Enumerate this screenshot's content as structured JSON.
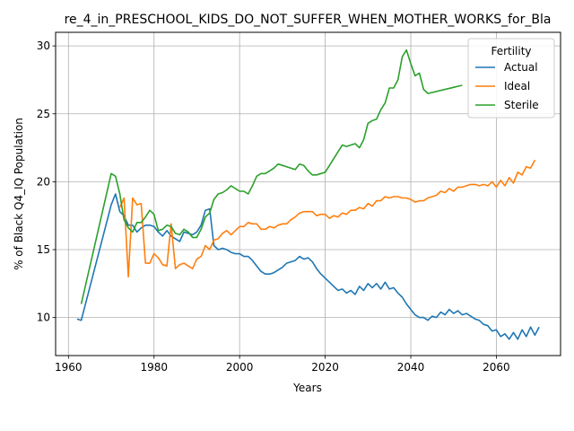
{
  "chart_data": {
    "type": "line",
    "title": "re_4_in_PRESCHOOL_KIDS_DO_NOT_SUFFER_WHEN_MOTHER_WORKS_for_Bla",
    "xlabel": "Years",
    "ylabel": "% of Black Q4_IQ Population",
    "xlim": [
      1957,
      2075
    ],
    "ylim": [
      7.2,
      31.0
    ],
    "x_ticks": [
      1960,
      1980,
      2000,
      2020,
      2040,
      2060
    ],
    "y_ticks": [
      10,
      15,
      20,
      25,
      30
    ],
    "grid": true,
    "legend": {
      "title": "Fertility",
      "position": "top-right"
    },
    "series": [
      {
        "name": "Actual",
        "color": "#1f77b4",
        "points": [
          [
            1962,
            9.9
          ],
          [
            1963,
            9.8
          ],
          [
            1970,
            18.3
          ],
          [
            1971,
            19.1
          ],
          [
            1972,
            17.8
          ],
          [
            1973,
            17.5
          ],
          [
            1974,
            16.8
          ],
          [
            1975,
            16.8
          ],
          [
            1976,
            16.3
          ],
          [
            1977,
            16.6
          ],
          [
            1978,
            16.8
          ],
          [
            1979,
            16.8
          ],
          [
            1980,
            16.7
          ],
          [
            1981,
            16.3
          ],
          [
            1982,
            16.0
          ],
          [
            1983,
            16.4
          ],
          [
            1984,
            16.0
          ],
          [
            1985,
            15.8
          ],
          [
            1986,
            15.6
          ],
          [
            1987,
            16.3
          ],
          [
            1988,
            16.2
          ],
          [
            1989,
            16.1
          ],
          [
            1990,
            16.3
          ],
          [
            1991,
            16.8
          ],
          [
            1992,
            17.9
          ],
          [
            1993,
            18.0
          ],
          [
            1994,
            15.3
          ],
          [
            1995,
            15.0
          ],
          [
            1996,
            15.1
          ],
          [
            1997,
            15.0
          ],
          [
            1998,
            14.8
          ],
          [
            1999,
            14.7
          ],
          [
            2000,
            14.7
          ],
          [
            2001,
            14.5
          ],
          [
            2002,
            14.5
          ],
          [
            2003,
            14.2
          ],
          [
            2004,
            13.8
          ],
          [
            2005,
            13.4
          ],
          [
            2006,
            13.2
          ],
          [
            2007,
            13.2
          ],
          [
            2008,
            13.3
          ],
          [
            2009,
            13.5
          ],
          [
            2010,
            13.7
          ],
          [
            2011,
            14.0
          ],
          [
            2012,
            14.1
          ],
          [
            2013,
            14.2
          ],
          [
            2014,
            14.5
          ],
          [
            2015,
            14.3
          ],
          [
            2016,
            14.4
          ],
          [
            2017,
            14.1
          ],
          [
            2018,
            13.6
          ],
          [
            2019,
            13.2
          ],
          [
            2020,
            12.9
          ],
          [
            2021,
            12.6
          ],
          [
            2022,
            12.3
          ],
          [
            2023,
            12.0
          ],
          [
            2024,
            12.1
          ],
          [
            2025,
            11.8
          ],
          [
            2026,
            12.0
          ],
          [
            2027,
            11.7
          ],
          [
            2028,
            12.3
          ],
          [
            2029,
            12.0
          ],
          [
            2030,
            12.5
          ],
          [
            2031,
            12.2
          ],
          [
            2032,
            12.5
          ],
          [
            2033,
            12.1
          ],
          [
            2034,
            12.6
          ],
          [
            2035,
            12.1
          ],
          [
            2036,
            12.2
          ],
          [
            2037,
            11.8
          ],
          [
            2038,
            11.5
          ],
          [
            2039,
            11.0
          ],
          [
            2040,
            10.6
          ],
          [
            2041,
            10.2
          ],
          [
            2042,
            10.0
          ],
          [
            2043,
            10.0
          ],
          [
            2044,
            9.8
          ],
          [
            2045,
            10.1
          ],
          [
            2046,
            10.0
          ],
          [
            2047,
            10.4
          ],
          [
            2048,
            10.2
          ],
          [
            2049,
            10.6
          ],
          [
            2050,
            10.3
          ],
          [
            2051,
            10.5
          ],
          [
            2052,
            10.2
          ],
          [
            2053,
            10.3
          ],
          [
            2054,
            10.1
          ],
          [
            2055,
            9.9
          ],
          [
            2056,
            9.8
          ],
          [
            2057,
            9.5
          ],
          [
            2058,
            9.4
          ],
          [
            2059,
            9.0
          ],
          [
            2060,
            9.1
          ],
          [
            2061,
            8.6
          ],
          [
            2062,
            8.8
          ],
          [
            2063,
            8.4
          ],
          [
            2064,
            8.9
          ],
          [
            2065,
            8.4
          ],
          [
            2066,
            9.1
          ],
          [
            2067,
            8.6
          ],
          [
            2068,
            9.3
          ],
          [
            2069,
            8.7
          ],
          [
            2070,
            9.3
          ]
        ]
      },
      {
        "name": "Ideal",
        "color": "#ff7f0e",
        "points": [
          [
            1972,
            18.1
          ],
          [
            1973,
            18.8
          ],
          [
            1974,
            13.0
          ],
          [
            1975,
            18.8
          ],
          [
            1976,
            18.3
          ],
          [
            1977,
            18.4
          ],
          [
            1978,
            14.0
          ],
          [
            1979,
            14.0
          ],
          [
            1980,
            14.7
          ],
          [
            1981,
            14.4
          ],
          [
            1982,
            13.9
          ],
          [
            1983,
            13.8
          ],
          [
            1984,
            16.9
          ],
          [
            1985,
            13.6
          ],
          [
            1986,
            13.9
          ],
          [
            1987,
            14.0
          ],
          [
            1988,
            13.8
          ],
          [
            1989,
            13.6
          ],
          [
            1990,
            14.3
          ],
          [
            1991,
            14.5
          ],
          [
            1992,
            15.3
          ],
          [
            1993,
            15.0
          ],
          [
            1994,
            15.7
          ],
          [
            1995,
            15.8
          ],
          [
            1996,
            16.2
          ],
          [
            1997,
            16.4
          ],
          [
            1998,
            16.1
          ],
          [
            1999,
            16.4
          ],
          [
            2000,
            16.7
          ],
          [
            2001,
            16.7
          ],
          [
            2002,
            17.0
          ],
          [
            2003,
            16.9
          ],
          [
            2004,
            16.9
          ],
          [
            2005,
            16.5
          ],
          [
            2006,
            16.5
          ],
          [
            2007,
            16.7
          ],
          [
            2008,
            16.6
          ],
          [
            2009,
            16.8
          ],
          [
            2010,
            16.9
          ],
          [
            2011,
            16.9
          ],
          [
            2012,
            17.2
          ],
          [
            2013,
            17.4
          ],
          [
            2014,
            17.7
          ],
          [
            2015,
            17.8
          ],
          [
            2016,
            17.8
          ],
          [
            2017,
            17.8
          ],
          [
            2018,
            17.5
          ],
          [
            2019,
            17.6
          ],
          [
            2020,
            17.6
          ],
          [
            2021,
            17.3
          ],
          [
            2022,
            17.5
          ],
          [
            2023,
            17.4
          ],
          [
            2024,
            17.7
          ],
          [
            2025,
            17.6
          ],
          [
            2026,
            17.9
          ],
          [
            2027,
            17.9
          ],
          [
            2028,
            18.1
          ],
          [
            2029,
            18.0
          ],
          [
            2030,
            18.4
          ],
          [
            2031,
            18.2
          ],
          [
            2032,
            18.6
          ],
          [
            2033,
            18.6
          ],
          [
            2034,
            18.9
          ],
          [
            2035,
            18.8
          ],
          [
            2036,
            18.9
          ],
          [
            2037,
            18.9
          ],
          [
            2038,
            18.8
          ],
          [
            2039,
            18.8
          ],
          [
            2040,
            18.7
          ],
          [
            2041,
            18.5
          ],
          [
            2042,
            18.6
          ],
          [
            2043,
            18.6
          ],
          [
            2044,
            18.8
          ],
          [
            2045,
            18.9
          ],
          [
            2046,
            19.0
          ],
          [
            2047,
            19.3
          ],
          [
            2048,
            19.2
          ],
          [
            2049,
            19.5
          ],
          [
            2050,
            19.3
          ],
          [
            2051,
            19.6
          ],
          [
            2052,
            19.6
          ],
          [
            2053,
            19.7
          ],
          [
            2054,
            19.8
          ],
          [
            2055,
            19.8
          ],
          [
            2056,
            19.7
          ],
          [
            2057,
            19.8
          ],
          [
            2058,
            19.7
          ],
          [
            2059,
            20.0
          ],
          [
            2060,
            19.6
          ],
          [
            2061,
            20.1
          ],
          [
            2062,
            19.7
          ],
          [
            2063,
            20.3
          ],
          [
            2064,
            19.9
          ],
          [
            2065,
            20.7
          ],
          [
            2066,
            20.5
          ],
          [
            2067,
            21.1
          ],
          [
            2068,
            21.0
          ],
          [
            2069,
            21.6
          ]
        ]
      },
      {
        "name": "Sterile",
        "color": "#2ca02c",
        "points": [
          [
            1963,
            11.0
          ],
          [
            1970,
            20.6
          ],
          [
            1971,
            20.4
          ],
          [
            1972,
            19.1
          ],
          [
            1973,
            17.2
          ],
          [
            1974,
            16.6
          ],
          [
            1975,
            16.3
          ],
          [
            1976,
            17.0
          ],
          [
            1977,
            17.0
          ],
          [
            1978,
            17.4
          ],
          [
            1979,
            17.9
          ],
          [
            1980,
            17.6
          ],
          [
            1981,
            16.4
          ],
          [
            1982,
            16.5
          ],
          [
            1983,
            16.8
          ],
          [
            1984,
            16.7
          ],
          [
            1985,
            16.2
          ],
          [
            1986,
            16.1
          ],
          [
            1987,
            16.5
          ],
          [
            1988,
            16.3
          ],
          [
            1989,
            15.9
          ],
          [
            1990,
            15.9
          ],
          [
            1991,
            16.5
          ],
          [
            1992,
            17.4
          ],
          [
            1993,
            17.7
          ],
          [
            1994,
            18.7
          ],
          [
            1995,
            19.1
          ],
          [
            1996,
            19.2
          ],
          [
            1997,
            19.4
          ],
          [
            1998,
            19.7
          ],
          [
            1999,
            19.5
          ],
          [
            2000,
            19.3
          ],
          [
            2001,
            19.3
          ],
          [
            2002,
            19.1
          ],
          [
            2003,
            19.7
          ],
          [
            2004,
            20.4
          ],
          [
            2005,
            20.6
          ],
          [
            2006,
            20.6
          ],
          [
            2007,
            20.8
          ],
          [
            2008,
            21.0
          ],
          [
            2009,
            21.3
          ],
          [
            2010,
            21.2
          ],
          [
            2011,
            21.1
          ],
          [
            2012,
            21.0
          ],
          [
            2013,
            20.9
          ],
          [
            2014,
            21.3
          ],
          [
            2015,
            21.2
          ],
          [
            2016,
            20.8
          ],
          [
            2017,
            20.5
          ],
          [
            2018,
            20.5
          ],
          [
            2019,
            20.6
          ],
          [
            2020,
            20.7
          ],
          [
            2021,
            21.2
          ],
          [
            2022,
            21.7
          ],
          [
            2023,
            22.2
          ],
          [
            2024,
            22.7
          ],
          [
            2025,
            22.6
          ],
          [
            2026,
            22.7
          ],
          [
            2027,
            22.8
          ],
          [
            2028,
            22.5
          ],
          [
            2029,
            23.1
          ],
          [
            2030,
            24.3
          ],
          [
            2031,
            24.5
          ],
          [
            2032,
            24.6
          ],
          [
            2033,
            25.3
          ],
          [
            2034,
            25.8
          ],
          [
            2035,
            26.9
          ],
          [
            2036,
            26.9
          ],
          [
            2037,
            27.5
          ],
          [
            2038,
            29.2
          ],
          [
            2039,
            29.7
          ],
          [
            2040,
            28.7
          ],
          [
            2041,
            27.8
          ],
          [
            2042,
            28.0
          ],
          [
            2043,
            26.8
          ],
          [
            2044,
            26.5
          ],
          [
            2052,
            27.1
          ]
        ]
      }
    ]
  }
}
